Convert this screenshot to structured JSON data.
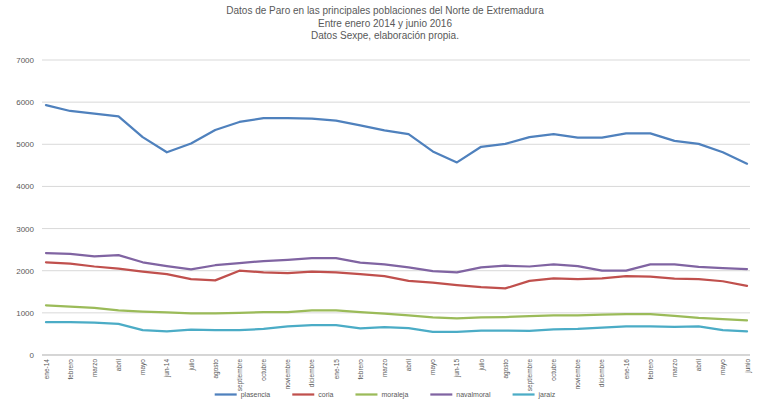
{
  "chart_data": {
    "type": "line",
    "title": "Datos de Paro en las principales poblaciones del Norte de Extremadura",
    "subtitle": [
      "Entre enero 2014 y junio 2016",
      "Datos Sexpe, elaboración propia."
    ],
    "categories": [
      "ene-14",
      "febrero",
      "marzo",
      "abril",
      "mayo",
      "jun-14",
      "julio",
      "agosto",
      "septiembre",
      "octubre",
      "noviembre",
      "diciembre",
      "ene-15",
      "febrero",
      "marzo",
      "abril",
      "mayo",
      "jun-15",
      "julio",
      "agosto",
      "septiembre",
      "octubre",
      "noviembre",
      "diciembre",
      "ene-16",
      "febrero",
      "marzo",
      "abril",
      "mayo",
      "junio"
    ],
    "series": [
      {
        "name": "plasencia",
        "color": "#4f81bd",
        "values": [
          5930,
          5790,
          5730,
          5660,
          5170,
          4810,
          5020,
          5340,
          5530,
          5620,
          5620,
          5610,
          5560,
          5450,
          5330,
          5240,
          4830,
          4570,
          4940,
          5010,
          5170,
          5240,
          5160,
          5160,
          5260,
          5260,
          5080,
          5010,
          4810,
          4540
        ]
      },
      {
        "name": "coria",
        "color": "#c0504d",
        "values": [
          2200,
          2170,
          2100,
          2050,
          1980,
          1920,
          1800,
          1770,
          2000,
          1960,
          1940,
          1980,
          1960,
          1920,
          1870,
          1760,
          1720,
          1660,
          1610,
          1580,
          1760,
          1820,
          1800,
          1820,
          1870,
          1860,
          1810,
          1800,
          1750,
          1640
        ]
      },
      {
        "name": "moraleja",
        "color": "#9bbb59",
        "values": [
          1180,
          1150,
          1120,
          1060,
          1030,
          1010,
          990,
          990,
          1000,
          1020,
          1020,
          1060,
          1060,
          1020,
          980,
          940,
          890,
          870,
          890,
          900,
          920,
          940,
          940,
          960,
          970,
          970,
          930,
          880,
          850,
          820
        ]
      },
      {
        "name": "navalmoral",
        "color": "#8064a2",
        "values": [
          2420,
          2400,
          2340,
          2370,
          2200,
          2110,
          2030,
          2130,
          2180,
          2230,
          2260,
          2300,
          2300,
          2190,
          2150,
          2080,
          1990,
          1960,
          2080,
          2120,
          2100,
          2150,
          2110,
          2000,
          2000,
          2150,
          2150,
          2090,
          2060,
          2040
        ]
      },
      {
        "name": "jaraiz",
        "color": "#4bacc6",
        "values": [
          780,
          780,
          770,
          740,
          590,
          560,
          600,
          590,
          590,
          620,
          680,
          710,
          710,
          630,
          660,
          640,
          550,
          550,
          580,
          580,
          570,
          610,
          620,
          650,
          680,
          680,
          670,
          680,
          590,
          560
        ]
      }
    ],
    "ylim": [
      0,
      7000
    ],
    "yticks": [
      0,
      1000,
      2000,
      3000,
      4000,
      5000,
      6000,
      7000
    ],
    "grid": true,
    "legend": "bottom"
  }
}
